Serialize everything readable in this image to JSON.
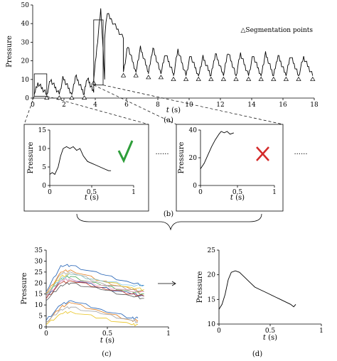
{
  "colors": {
    "check": "#2e9e3a",
    "cross": "#d42a2a",
    "axis": "#000000"
  },
  "panels": {
    "a": {
      "label": "(a)"
    },
    "b": {
      "label": "(b)",
      "dots": "......"
    },
    "c": {
      "label": "(c)"
    },
    "d": {
      "label": "(d)"
    }
  },
  "chart_data": [
    {
      "id": "a",
      "type": "line",
      "ylabel": "Pressure",
      "xlabel_var": "t",
      "xlabel_unit": "(s)",
      "legend": "△Segmentation points",
      "legend_position": "top-right",
      "xlim": [
        0,
        18
      ],
      "ylim": [
        0,
        50
      ],
      "xticks": [
        0,
        2,
        4,
        6,
        8,
        10,
        12,
        14,
        16,
        18
      ],
      "yticks": [
        0,
        10,
        20,
        30,
        40,
        50
      ],
      "segments": [
        {
          "start": 0.1,
          "end": 0.9,
          "base": 2,
          "peak": 8,
          "peak_at": 0.3
        },
        {
          "start": 0.9,
          "end": 1.7,
          "base": 2,
          "peak": 10,
          "peak_at": 0.3
        },
        {
          "start": 1.7,
          "end": 2.5,
          "base": 2,
          "peak": 11,
          "peak_at": 0.3
        },
        {
          "start": 2.5,
          "end": 3.3,
          "base": 2,
          "peak": 12,
          "peak_at": 0.3
        },
        {
          "start": 3.3,
          "end": 3.9,
          "base": 3,
          "peak": 11,
          "peak_at": 0.3
        },
        {
          "start": 3.9,
          "end": 4.6,
          "base": 10,
          "peak": 48,
          "peak_at": 0.65
        },
        {
          "start": 4.6,
          "end": 5.8,
          "base": 32,
          "peak": 46,
          "peak_at": 0.1
        },
        {
          "start": 5.8,
          "end": 6.6,
          "base": 14,
          "peak": 28,
          "peak_at": 0.35
        },
        {
          "start": 6.6,
          "end": 7.4,
          "base": 14,
          "peak": 27,
          "peak_at": 0.35
        },
        {
          "start": 7.4,
          "end": 8.2,
          "base": 13,
          "peak": 27,
          "peak_at": 0.35
        },
        {
          "start": 8.2,
          "end": 9.0,
          "base": 13,
          "peak": 24,
          "peak_at": 0.35
        },
        {
          "start": 9.0,
          "end": 9.8,
          "base": 12,
          "peak": 26,
          "peak_at": 0.35
        },
        {
          "start": 9.8,
          "end": 10.6,
          "base": 12,
          "peak": 23,
          "peak_at": 0.35
        },
        {
          "start": 10.6,
          "end": 11.4,
          "base": 12,
          "peak": 22,
          "peak_at": 0.35
        },
        {
          "start": 11.4,
          "end": 12.2,
          "base": 12,
          "peak": 24,
          "peak_at": 0.35
        },
        {
          "start": 12.2,
          "end": 13.0,
          "base": 12,
          "peak": 25,
          "peak_at": 0.35
        },
        {
          "start": 13.0,
          "end": 13.8,
          "base": 12,
          "peak": 24,
          "peak_at": 0.35
        },
        {
          "start": 13.8,
          "end": 14.6,
          "base": 12,
          "peak": 23,
          "peak_at": 0.35
        },
        {
          "start": 14.6,
          "end": 15.4,
          "base": 12,
          "peak": 24,
          "peak_at": 0.35
        },
        {
          "start": 15.4,
          "end": 16.2,
          "base": 12,
          "peak": 23,
          "peak_at": 0.35
        },
        {
          "start": 16.2,
          "end": 17.0,
          "base": 12,
          "peak": 23,
          "peak_at": 0.35
        },
        {
          "start": 17.0,
          "end": 17.9,
          "base": 12,
          "peak": 22,
          "peak_at": 0.35
        }
      ],
      "segmentation_points": [
        [
          0.9,
          2
        ],
        [
          1.7,
          2
        ],
        [
          2.5,
          2
        ],
        [
          3.3,
          2
        ],
        [
          3.9,
          10
        ],
        [
          5.8,
          14
        ],
        [
          6.6,
          14
        ],
        [
          7.4,
          13
        ],
        [
          8.2,
          13
        ],
        [
          9.0,
          12
        ],
        [
          9.8,
          12
        ],
        [
          10.6,
          12
        ],
        [
          11.4,
          12
        ],
        [
          12.2,
          12
        ],
        [
          13.0,
          12
        ],
        [
          13.8,
          12
        ],
        [
          14.6,
          12
        ],
        [
          15.4,
          12
        ],
        [
          16.2,
          12
        ],
        [
          17.0,
          12
        ],
        [
          17.9,
          12
        ]
      ],
      "highlight_windows": [
        {
          "x": [
            0.1,
            0.9
          ],
          "y": [
            1,
            13
          ]
        },
        {
          "x": [
            3.9,
            4.5
          ],
          "y": [
            7,
            42
          ]
        }
      ]
    },
    {
      "id": "b1",
      "type": "line",
      "ylabel": "Pressure",
      "xlabel_var": "t",
      "xlabel_unit": "(s)",
      "xlim": [
        0,
        1
      ],
      "ylim": [
        0,
        15
      ],
      "xticks": [
        0,
        0.5,
        1
      ],
      "xticklabels": [
        "0",
        "0.5",
        "1"
      ],
      "yticks": [
        0,
        5,
        10,
        15
      ],
      "points": [
        [
          0.0,
          3
        ],
        [
          0.03,
          3.5
        ],
        [
          0.06,
          3
        ],
        [
          0.1,
          5
        ],
        [
          0.13,
          8
        ],
        [
          0.16,
          10
        ],
        [
          0.2,
          10.5
        ],
        [
          0.24,
          10
        ],
        [
          0.28,
          10.5
        ],
        [
          0.32,
          9.5
        ],
        [
          0.36,
          10
        ],
        [
          0.4,
          8
        ],
        [
          0.45,
          6.5
        ],
        [
          0.5,
          6
        ],
        [
          0.55,
          5.5
        ],
        [
          0.6,
          5
        ],
        [
          0.65,
          4.5
        ],
        [
          0.7,
          4
        ],
        [
          0.73,
          4
        ]
      ],
      "verdict": "valid"
    },
    {
      "id": "b2",
      "type": "line",
      "ylabel": "Pressure",
      "xlabel_var": "t",
      "xlabel_unit": "(s)",
      "xlim": [
        0,
        1
      ],
      "ylim": [
        0,
        40
      ],
      "xticks": [
        0,
        0.5,
        1
      ],
      "xticklabels": [
        "0",
        "0.5",
        "1"
      ],
      "yticks": [
        0,
        20,
        40
      ],
      "points": [
        [
          0.0,
          12
        ],
        [
          0.05,
          16
        ],
        [
          0.1,
          22
        ],
        [
          0.15,
          28
        ],
        [
          0.2,
          33
        ],
        [
          0.25,
          37
        ],
        [
          0.28,
          39
        ],
        [
          0.32,
          38
        ],
        [
          0.36,
          39
        ],
        [
          0.4,
          37
        ],
        [
          0.45,
          38
        ]
      ],
      "verdict": "invalid"
    },
    {
      "id": "c",
      "type": "line",
      "ylabel": "Pressure",
      "xlabel_var": "t",
      "xlabel_unit": "(s)",
      "xlim": [
        0,
        1
      ],
      "ylim": [
        0,
        35
      ],
      "xticks": [
        0,
        0.5,
        1
      ],
      "xticklabels": [
        "0",
        "0.5",
        "1"
      ],
      "yticks": [
        0,
        5,
        10,
        15,
        20,
        25,
        30,
        35
      ],
      "series": [
        {
          "color": "#1f5fb4",
          "values": [
            [
              0,
              16
            ],
            [
              0.12,
              28
            ],
            [
              0.2,
              28
            ],
            [
              0.45,
              24
            ],
            [
              0.7,
              20
            ],
            [
              0.8,
              19
            ]
          ]
        },
        {
          "color": "#e07b1a",
          "values": [
            [
              0,
              15
            ],
            [
              0.12,
              25
            ],
            [
              0.2,
              26
            ],
            [
              0.45,
              21
            ],
            [
              0.7,
              17
            ],
            [
              0.8,
              16
            ]
          ]
        },
        {
          "color": "#a0a0a0",
          "values": [
            [
              0,
              14
            ],
            [
              0.12,
              24
            ],
            [
              0.2,
              25
            ],
            [
              0.45,
              20
            ],
            [
              0.7,
              17
            ],
            [
              0.8,
              16
            ]
          ]
        },
        {
          "color": "#e8c21c",
          "values": [
            [
              0,
              15
            ],
            [
              0.12,
              23
            ],
            [
              0.2,
              24
            ],
            [
              0.45,
              21
            ],
            [
              0.7,
              18
            ],
            [
              0.8,
              17
            ]
          ]
        },
        {
          "color": "#3fa14a",
          "values": [
            [
              0,
              14
            ],
            [
              0.12,
              22
            ],
            [
              0.2,
              23
            ],
            [
              0.45,
              19
            ],
            [
              0.7,
              16
            ],
            [
              0.8,
              15
            ]
          ]
        },
        {
          "color": "#2a3b8f",
          "values": [
            [
              0,
              13
            ],
            [
              0.12,
              21
            ],
            [
              0.2,
              22
            ],
            [
              0.45,
              18
            ],
            [
              0.7,
              15
            ],
            [
              0.8,
              14
            ]
          ]
        },
        {
          "color": "#c0392b",
          "values": [
            [
              0,
              13
            ],
            [
              0.12,
              20
            ],
            [
              0.2,
              21
            ],
            [
              0.45,
              18
            ],
            [
              0.7,
              15
            ],
            [
              0.8,
              14
            ]
          ]
        },
        {
          "color": "#7fc7e8",
          "values": [
            [
              0,
              15
            ],
            [
              0.12,
              22
            ],
            [
              0.2,
              24
            ],
            [
              0.45,
              21
            ],
            [
              0.7,
              19
            ],
            [
              0.8,
              19
            ]
          ]
        },
        {
          "color": "#555555",
          "values": [
            [
              0,
              12
            ],
            [
              0.12,
              19
            ],
            [
              0.2,
              20
            ],
            [
              0.45,
              17
            ],
            [
              0.7,
              14
            ],
            [
              0.8,
              13
            ]
          ]
        },
        {
          "color": "#f0a0c8",
          "values": [
            [
              0,
              14
            ],
            [
              0.12,
              21
            ],
            [
              0.2,
              22
            ],
            [
              0.45,
              19
            ],
            [
              0.7,
              16
            ],
            [
              0.8,
              16
            ]
          ]
        },
        {
          "color": "#1f5fb4",
          "values": [
            [
              0,
              3
            ],
            [
              0.12,
              10
            ],
            [
              0.2,
              12
            ],
            [
              0.45,
              8
            ],
            [
              0.7,
              4
            ],
            [
              0.75,
              4
            ]
          ]
        },
        {
          "color": "#e07b1a",
          "values": [
            [
              0,
              2
            ],
            [
              0.12,
              9
            ],
            [
              0.2,
              11
            ],
            [
              0.45,
              7
            ],
            [
              0.7,
              3
            ],
            [
              0.75,
              3
            ]
          ]
        },
        {
          "color": "#a0a0a0",
          "values": [
            [
              0,
              2
            ],
            [
              0.12,
              8
            ],
            [
              0.2,
              9
            ],
            [
              0.45,
              6
            ],
            [
              0.7,
              3
            ],
            [
              0.75,
              2
            ]
          ]
        },
        {
          "color": "#e8c21c",
          "values": [
            [
              0,
              1
            ],
            [
              0.12,
              6
            ],
            [
              0.2,
              7
            ],
            [
              0.45,
              4
            ],
            [
              0.7,
              1
            ],
            [
              0.75,
              1
            ]
          ]
        }
      ]
    },
    {
      "id": "d",
      "type": "line",
      "ylabel": "Pressure",
      "xlabel_var": "t",
      "xlabel_unit": "(s)",
      "xlim": [
        0,
        1
      ],
      "ylim": [
        10,
        25
      ],
      "xticks": [
        0,
        0.5,
        1
      ],
      "xticklabels": [
        "0",
        "0.5",
        "1"
      ],
      "yticks": [
        10,
        15,
        20,
        25
      ],
      "points": [
        [
          0.0,
          13
        ],
        [
          0.03,
          14
        ],
        [
          0.06,
          16
        ],
        [
          0.09,
          19
        ],
        [
          0.12,
          20.5
        ],
        [
          0.16,
          20.8
        ],
        [
          0.2,
          20.5
        ],
        [
          0.25,
          19.5
        ],
        [
          0.3,
          18.5
        ],
        [
          0.35,
          17.5
        ],
        [
          0.4,
          17
        ],
        [
          0.45,
          16.5
        ],
        [
          0.5,
          16
        ],
        [
          0.55,
          15.5
        ],
        [
          0.6,
          15
        ],
        [
          0.65,
          14.5
        ],
        [
          0.7,
          14
        ],
        [
          0.73,
          13.5
        ],
        [
          0.75,
          14
        ]
      ]
    }
  ]
}
